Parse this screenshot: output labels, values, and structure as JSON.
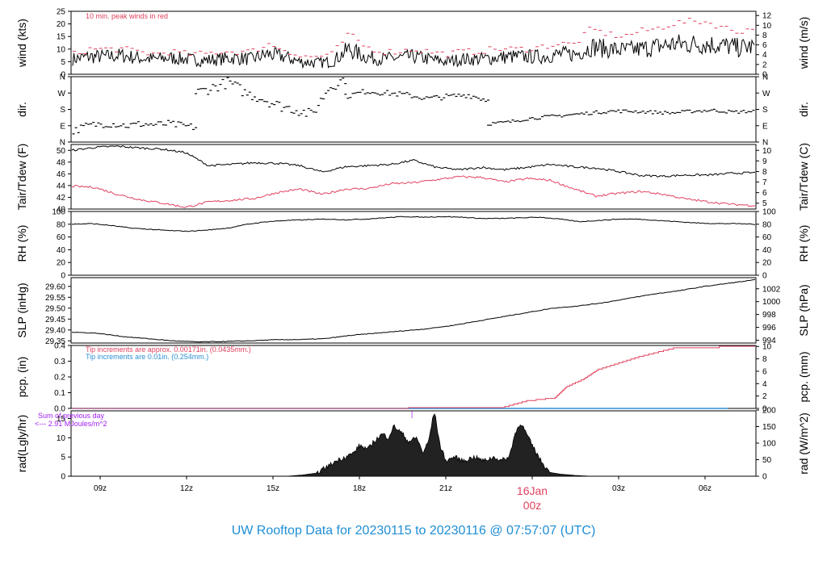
{
  "title": "UW Rooftop Data for 20230115  to  20230116 @ 07:57:07  (UTC)",
  "colors": {
    "title": "#1f8ed6",
    "red": "#e0415e",
    "blue": "#2b8fd6",
    "purple": "#a020f0",
    "black": "#000000"
  },
  "chart_data": [
    {
      "type": "line",
      "name": "wind",
      "ylabel_left": "wind (kts)",
      "ylabel_right": "wind (m/s)",
      "ylim": [
        0,
        25
      ],
      "yticks_left": [
        0,
        5,
        10,
        15,
        20,
        25
      ],
      "yticks_right": [
        0,
        2,
        4,
        6,
        8,
        10,
        12
      ],
      "annotation": "10 min. peak winds in red",
      "series": [
        {
          "values": [
            6,
            7,
            7,
            7.5,
            6.5,
            6,
            6.5,
            6,
            5.5,
            6,
            6.5,
            6,
            8,
            7,
            5,
            4.5,
            5,
            10,
            7,
            6,
            6.5,
            7,
            6,
            5,
            6,
            6,
            6.5,
            7,
            7,
            7,
            8,
            8,
            11,
            10,
            9.5,
            10,
            11,
            12,
            12,
            12,
            11.5,
            10.5,
            11
          ]
        },
        {
          "color": "red",
          "values": [
            8,
            10,
            10,
            10,
            9,
            8,
            9,
            8,
            8,
            9,
            9,
            9,
            12,
            10,
            7,
            7,
            8,
            16,
            11,
            9,
            9,
            10,
            9,
            8,
            9,
            9,
            10,
            10,
            10,
            11,
            12,
            12,
            18,
            16,
            15,
            17,
            18,
            20,
            21,
            21,
            19,
            17,
            18
          ]
        }
      ]
    },
    {
      "type": "scatter",
      "name": "dir",
      "ylabel_left": "dir.",
      "ylabel_right": "dir.",
      "yticks": [
        "N",
        "E",
        "S",
        "W",
        "N"
      ],
      "series": [
        {
          "note": "segment 1: mostly E, around 60-120 deg",
          "values": [
            60,
            90,
            100,
            100,
            90,
            100,
            95,
            100,
            90,
            80
          ]
        },
        {
          "note": "segment 2: westerly to northerly",
          "values": [
            270,
            300,
            330,
            270,
            240,
            200,
            180,
            150,
            300,
            350
          ]
        },
        {
          "note": "segment 3: W to SW",
          "values": [
            250,
            280,
            270,
            260,
            240,
            250,
            260,
            230
          ]
        },
        {
          "note": "segment 4: ESE to S",
          "values": [
            100,
            110,
            130,
            140,
            150,
            160,
            170,
            170,
            165,
            160,
            170,
            175,
            165,
            170
          ]
        }
      ]
    },
    {
      "type": "line",
      "name": "temperature",
      "ylabel_left": "Tair/Tdew (F)",
      "ylabel_right": "Tair/Tdew (C)",
      "ylim": [
        40,
        51
      ],
      "yticks_left": [
        40,
        42,
        44,
        46,
        48,
        50
      ],
      "yticks_right": [
        5,
        6,
        7,
        8,
        9,
        10
      ],
      "series": [
        {
          "name": "Tair",
          "values": [
            50,
            50.5,
            50.7,
            50.4,
            50.2,
            49.6,
            47.4,
            47.6,
            47.9,
            47.8,
            47.4,
            46.3,
            47.2,
            47.4,
            47.6,
            48.3,
            47.1,
            46.7,
            47.1,
            46.7,
            47.1,
            47.6,
            47.2,
            47.0,
            46.4,
            45.7,
            45.6,
            45.8,
            45.8,
            46.1,
            46.2
          ]
        },
        {
          "name": "Tdew",
          "color": "red",
          "values": [
            43.9,
            43.7,
            42.5,
            41.6,
            41.0,
            40.3,
            41.2,
            41.5,
            41.8,
            42.8,
            43.4,
            42.5,
            43.4,
            43.5,
            44.3,
            44.5,
            45.0,
            45.5,
            45.4,
            44.6,
            45.2,
            44.9,
            43.5,
            42.2,
            42.7,
            43.0,
            42.5,
            41.7,
            41.2,
            40.8,
            40.6
          ]
        }
      ]
    },
    {
      "type": "line",
      "name": "rh",
      "ylabel_left": "RH (%)",
      "ylabel_right": "RH (%)",
      "ylim": [
        0,
        100
      ],
      "yticks": [
        0,
        20,
        40,
        60,
        80,
        100
      ],
      "series": [
        {
          "values": [
            80,
            81,
            78,
            74,
            72,
            70,
            69,
            71,
            74,
            80,
            84,
            86,
            87,
            88,
            87,
            88,
            90,
            92,
            91,
            92,
            91,
            89,
            89,
            90,
            91,
            88,
            84,
            86,
            88,
            88,
            86,
            84,
            82,
            81,
            81,
            80
          ]
        }
      ]
    },
    {
      "type": "line",
      "name": "slp",
      "ylabel_left": "SLP (inHg)",
      "ylabel_right": "SLP (hPa)",
      "ylim": [
        29.34,
        29.64
      ],
      "yticks_left": [
        29.35,
        29.4,
        29.45,
        29.5,
        29.55,
        29.6
      ],
      "yticks_right": [
        994,
        996,
        998,
        1000,
        1002
      ],
      "series": [
        {
          "values": [
            29.39,
            29.385,
            29.37,
            29.36,
            29.35,
            29.345,
            29.347,
            29.35,
            29.355,
            29.356,
            29.36,
            29.375,
            29.385,
            29.395,
            29.405,
            29.42,
            29.44,
            29.46,
            29.48,
            29.5,
            29.51,
            29.525,
            29.545,
            29.565,
            29.58,
            29.6,
            29.615,
            29.63
          ]
        }
      ]
    },
    {
      "type": "line",
      "name": "precip",
      "ylabel_left": "pcp. (in)",
      "ylabel_right": "pcp. (mm)",
      "ylim": [
        0,
        0.4
      ],
      "yticks_left": [
        0.0,
        0.1,
        0.2,
        0.3,
        0.4
      ],
      "yticks_right": [
        0,
        2,
        4,
        6,
        8,
        10
      ],
      "annotation_red": "Tip increments are approx. 0.00171in. (0.0435mm.)",
      "annotation_blue": "Tip increments are 0.01in. (0.254mm.)",
      "series": [
        {
          "color": "red",
          "x": [
            0,
            11,
            12.2,
            15.4,
            16.3,
            17.3,
            17.7,
            18.3,
            18.8,
            20.2,
            21.4,
            23.0
          ],
          "values": [
            0,
            0,
            0.005,
            0.005,
            0.05,
            0.07,
            0.14,
            0.19,
            0.25,
            0.33,
            0.385,
            0.395
          ]
        },
        {
          "color": "blue",
          "x": [
            0,
            23.0
          ],
          "values": [
            0,
            0
          ]
        }
      ]
    },
    {
      "type": "area",
      "name": "radiation",
      "ylabel_left": "rad(Lgly/hr)",
      "ylabel_right": "rad (W/m^2)",
      "ylim": [
        0,
        17
      ],
      "yticks_left": [
        0,
        5,
        10,
        15
      ],
      "yticks_right": [
        0,
        50,
        100,
        150,
        200
      ],
      "annotation_sum": "Sum of previous day",
      "annotation_total": "<--- 2.91 MJoules/m^2",
      "marker": "|",
      "series": [
        {
          "x": [
            7.5,
            8,
            8.5,
            9,
            9.2,
            9.5,
            9.8,
            10,
            10.3,
            10.5,
            10.8,
            11,
            11.2,
            11.5,
            11.7,
            12,
            12.2,
            12.4,
            12.6,
            12.8,
            13,
            13.3,
            13.6,
            14,
            14.3,
            14.7,
            14.9,
            15.2,
            15.4,
            15.6,
            15.8,
            16,
            16.3,
            16.6,
            17,
            17.2,
            17.5,
            18
          ],
          "values": [
            0,
            0.3,
            0.8,
            3,
            4,
            5,
            6,
            8,
            7,
            9,
            11,
            10,
            13,
            11,
            9,
            10,
            6,
            9,
            17,
            8,
            4,
            5,
            4,
            5,
            4,
            5,
            4,
            5,
            11,
            14,
            11,
            8,
            4,
            1,
            0.5,
            0.4,
            0.2,
            0
          ]
        }
      ]
    }
  ],
  "x_axis": {
    "ticks": [
      "09z",
      "12z",
      "15z",
      "18z",
      "21z",
      "00z",
      "03z",
      "06z"
    ],
    "day_label": "16Jan",
    "day_tick": "00z"
  }
}
